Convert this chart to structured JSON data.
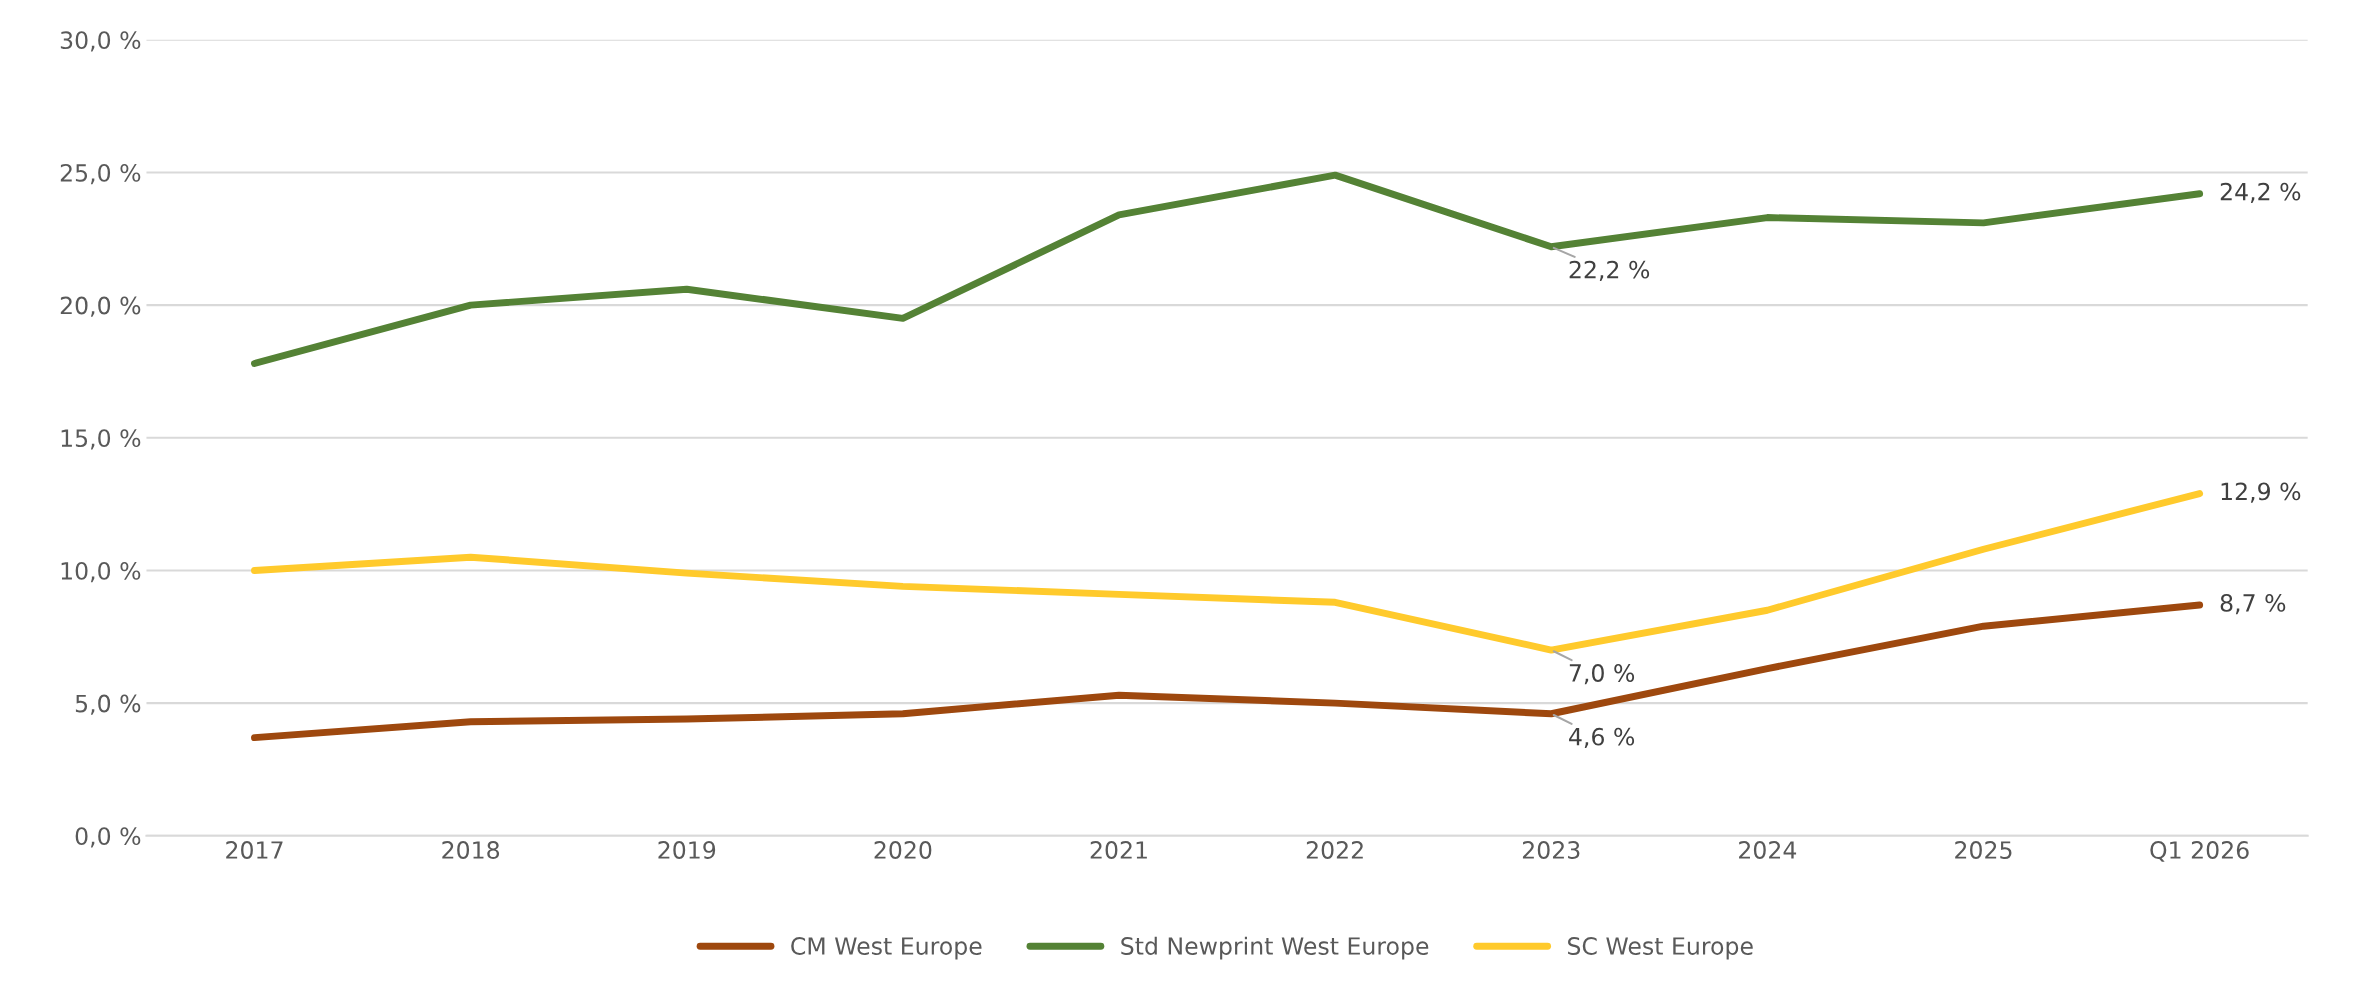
{
  "chart_data": {
    "type": "line",
    "categories": [
      "2017",
      "2018",
      "2019",
      "2020",
      "2021",
      "2022",
      "2023",
      "2024",
      "2025",
      "Q1 2026"
    ],
    "series": [
      {
        "name": "CM West Europe",
        "color": "#9e480e",
        "values": [
          3.7,
          4.3,
          4.4,
          4.6,
          5.3,
          5.0,
          4.6,
          6.3,
          7.9,
          8.7
        ],
        "value_labels": [
          null,
          null,
          null,
          null,
          null,
          null,
          "4,6 %",
          null,
          null,
          "8,7 %"
        ]
      },
      {
        "name": "Std Newprint West Europe",
        "color": "#548235",
        "values": [
          17.8,
          20.0,
          20.6,
          19.5,
          23.4,
          24.9,
          22.2,
          23.3,
          23.1,
          24.2
        ],
        "value_labels": [
          null,
          null,
          null,
          null,
          null,
          null,
          "22,2 %",
          null,
          null,
          "24,2 %"
        ]
      },
      {
        "name": "SC West Europe",
        "color": "#ffca2c",
        "values": [
          10.0,
          10.5,
          9.9,
          9.4,
          9.1,
          8.8,
          7.0,
          8.5,
          10.8,
          12.9
        ],
        "value_labels": [
          null,
          null,
          null,
          null,
          null,
          null,
          "7,0 %",
          null,
          null,
          "12,9 %"
        ]
      }
    ],
    "ylim": [
      0,
      30
    ],
    "yticks": [
      {
        "value": 0,
        "label": "0,0 %"
      },
      {
        "value": 5,
        "label": "5,0 %"
      },
      {
        "value": 10,
        "label": "10,0 %"
      },
      {
        "value": 15,
        "label": "15,0 %"
      },
      {
        "value": 20,
        "label": "20,0 %"
      },
      {
        "value": 25,
        "label": "25,0 %"
      },
      {
        "value": 30,
        "label": "30,0 %"
      }
    ],
    "grid": "y",
    "legend": "bottom",
    "marker": "none",
    "line_style": "solid"
  }
}
